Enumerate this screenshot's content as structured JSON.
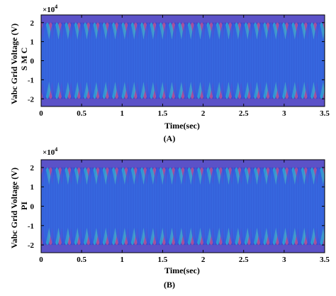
{
  "chart_data": [
    {
      "type": "line",
      "panel_label": "(A)",
      "xlabel": "Time(sec)",
      "ylabel": "Vabc Grid Voltage (V)",
      "ylabel2": "S M C",
      "y_multiplier": "×10",
      "y_multiplier_exp": "4",
      "xlim": [
        0,
        3.5
      ],
      "ylim": [
        -2.4,
        2.4
      ],
      "x_ticks": [
        "0",
        "0.5",
        "1",
        "1.5",
        "2",
        "2.5",
        "3",
        "3.5"
      ],
      "y_ticks": [
        "2",
        "1",
        "0",
        "-1",
        "-2"
      ],
      "envelope_amplitude": 2.0,
      "beat_cycles": 30,
      "grid": false,
      "colors": {
        "phase_a": "#f0608e",
        "phase_b": "#3d6cf2",
        "phase_c": "#2bd6e8",
        "background": "#5b52c8"
      }
    },
    {
      "type": "line",
      "panel_label": "(B)",
      "xlabel": "Time(sec)",
      "ylabel": "Vabc Grid Voltage (V)",
      "ylabel2": "PI",
      "y_multiplier": "×10",
      "y_multiplier_exp": "4",
      "xlim": [
        0,
        3.5
      ],
      "ylim": [
        -2.4,
        2.4
      ],
      "x_ticks": [
        "0",
        "0.5",
        "1",
        "1.5",
        "2",
        "2.5",
        "3",
        "3.5"
      ],
      "y_ticks": [
        "2",
        "1",
        "0",
        "-1",
        "-2"
      ],
      "envelope_amplitude": 2.0,
      "beat_cycles": 30,
      "grid": false,
      "colors": {
        "phase_a": "#f0608e",
        "phase_b": "#3d6cf2",
        "phase_c": "#2bd6e8",
        "background": "#5b52c8"
      }
    }
  ]
}
